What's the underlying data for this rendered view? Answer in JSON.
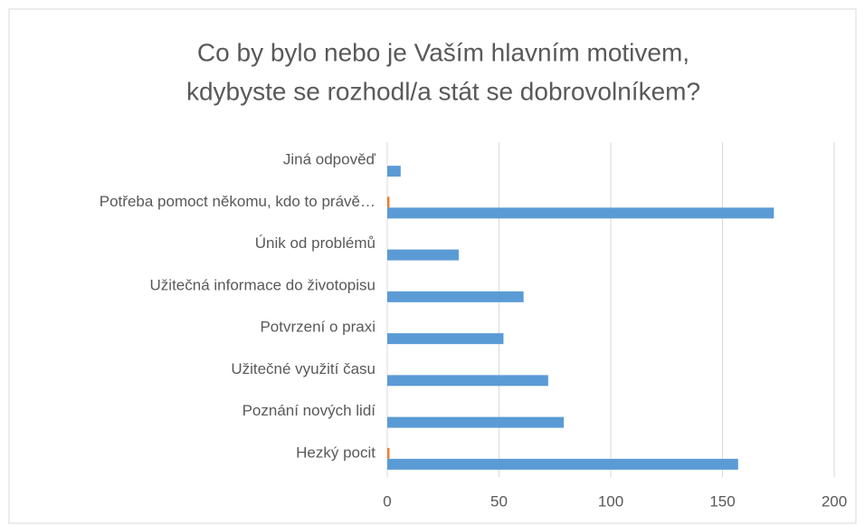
{
  "chart_data": {
    "type": "hbar",
    "title": [
      "Co by bylo nebo je Vaším hlavním motivem,",
      "kdybyste se rozhodl/a stát se dobrovolníkem?"
    ],
    "categories": [
      "Jiná odpověď",
      "Potřeba pomoct někomu, kdo to právě…",
      "Únik od problémů",
      "Užitečná informace do životopisu",
      "Potvrzení o praxi",
      "Užitečné využití času",
      "Poznání nových lidí",
      "Hezký pocit"
    ],
    "series": [
      {
        "color": "#ed7d31",
        "values": [
          0,
          1,
          0,
          0,
          0,
          0,
          0,
          1
        ]
      },
      {
        "color": "#5b9bd5",
        "values": [
          6,
          173,
          32,
          61,
          52,
          72,
          79,
          157
        ]
      }
    ],
    "xlim": [
      0,
      200
    ],
    "xticks": [
      0,
      50,
      100,
      150,
      200
    ],
    "grid": true
  }
}
